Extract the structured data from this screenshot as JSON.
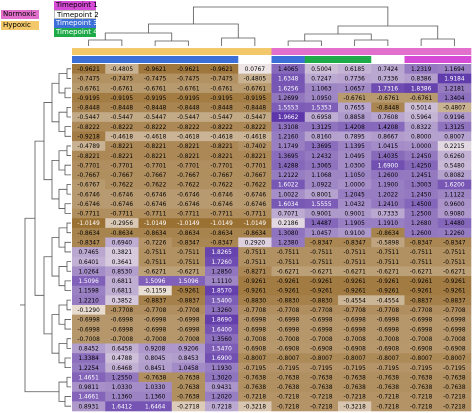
{
  "chart_data": {
    "type": "heatmap",
    "title": "",
    "xlabel": "",
    "ylabel": "",
    "legend": {
      "condition": [
        {
          "label": "Normoxic",
          "color": "#e16fcb"
        },
        {
          "label": "Hypoxic",
          "color": "#f2c86b"
        }
      ],
      "timepoint": [
        {
          "label": "Timepoint 1",
          "color": "#d64bd6"
        },
        {
          "label": "Timepoint 2",
          "color": "#ffffff"
        },
        {
          "label": "Timepoint 3",
          "color": "#3d6fd8"
        },
        {
          "label": "Timepoint 4",
          "color": "#1faa4a"
        }
      ]
    },
    "column_annotations": {
      "condition": [
        "Hypoxic",
        "Hypoxic",
        "Hypoxic",
        "Hypoxic",
        "Hypoxic",
        "Hypoxic",
        "Normoxic",
        "Normoxic",
        "Normoxic",
        "Normoxic",
        "Normoxic",
        "Normoxic"
      ],
      "timepoint": [
        "Timepoint 3",
        "Timepoint 3",
        "Timepoint 3",
        "Timepoint 3",
        "Timepoint 3",
        "Timepoint 2",
        "Timepoint 3",
        "Timepoint 4",
        "Timepoint 4",
        "Timepoint 2",
        "Timepoint 1",
        "Timepoint 1"
      ]
    },
    "color_scale": {
      "low": "#8a5a12",
      "mid": "#f3ece8",
      "high": "#5a33a8",
      "range": [
        -1.2,
        2.0
      ]
    },
    "values": [
      [
        "-0.9621",
        "-0.4805",
        "-0.9621",
        "-0.9621",
        "-0.9621",
        "0.0767",
        "1.4065",
        "0.5004",
        "0.6185",
        "0.7424",
        "1.2319",
        "1.1694"
      ],
      [
        "-0.7475",
        "-0.7475",
        "-0.7475",
        "-0.7475",
        "-0.7475",
        "-0.4805",
        "1.6348",
        "0.7247",
        "0.7736",
        "0.7336",
        "0.8386",
        "1.9184"
      ],
      [
        "-0.6761",
        "-0.6761",
        "-0.6761",
        "-0.6761",
        "-0.6761",
        "-0.6761",
        "1.6256",
        "1.1063",
        "1.0657",
        "1.7316",
        "1.8386",
        "1.2181"
      ],
      [
        "-0.9195",
        "-0.9195",
        "-0.9195",
        "-0.9195",
        "-0.9195",
        "-0.9195",
        "1.2699",
        "1.0950",
        "-0.6761",
        "-0.6761",
        "-0.6761",
        "1.3404"
      ],
      [
        "-0.8448",
        "-0.8448",
        "-0.8448",
        "-0.8448",
        "-0.8448",
        "-0.8448",
        "1.5553",
        "1.5353",
        "0.7655",
        "-0.8448",
        "0.5014",
        "-0.4807"
      ],
      [
        "-0.5447",
        "-0.5447",
        "-0.5447",
        "-0.5447",
        "-0.5447",
        "-0.5447",
        "1.9662",
        "0.6958",
        "0.8858",
        "0.7608",
        "0.5964",
        "0.9196"
      ],
      [
        "-0.8222",
        "-0.8222",
        "-0.8222",
        "-0.8222",
        "-0.8222",
        "-0.8222",
        "1.3108",
        "1.3125",
        "1.4208",
        "1.4208",
        "0.8322",
        "1.3125"
      ],
      [
        "-0.9218",
        "-0.4618",
        "-0.4618",
        "-0.4618",
        "-0.4618",
        "-0.4618",
        "1.2160",
        "0.8160",
        "0.7895",
        "0.8667",
        "0.8000",
        "0.8007"
      ],
      [
        "-0.4789",
        "-0.8221",
        "-0.8221",
        "-0.8221",
        "-0.8221",
        "-0.7402",
        "1.1749",
        "1.3695",
        "1.1395",
        "1.0415",
        "1.0000",
        "0.2215"
      ],
      [
        "-0.8221",
        "-0.8221",
        "-0.8221",
        "-0.8221",
        "-0.8221",
        "-0.8221",
        "1.3695",
        "1.2432",
        "1.0495",
        "1.4035",
        "1.2450",
        "0.6260"
      ],
      [
        "-0.7701",
        "-0.7701",
        "-0.7701",
        "-0.7701",
        "-0.7701",
        "-0.7701",
        "1.4288",
        "1.3065",
        "1.0300",
        "1.6900",
        "1.4250",
        "0.5480"
      ],
      [
        "-0.7667",
        "-0.7667",
        "-0.7667",
        "-0.7667",
        "-0.7667",
        "-0.7667",
        "1.2122",
        "1.1068",
        "1.1050",
        "1.2600",
        "1.2451",
        "0.8082"
      ],
      [
        "-0.6767",
        "-0.7622",
        "-0.7622",
        "-0.7622",
        "-0.7622",
        "-0.7622",
        "1.6022",
        "1.0922",
        "1.0000",
        "1.1900",
        "1.3003",
        "1.6200"
      ],
      [
        "-0.6746",
        "-0.6746",
        "-0.6746",
        "-0.6746",
        "-0.6746",
        "-0.6746",
        "1.0022",
        "0.8001",
        "1.2045",
        "1.2022",
        "1.2450",
        "1.1122"
      ],
      [
        "-0.6746",
        "-0.6746",
        "-0.6746",
        "-0.6746",
        "-0.6746",
        "-0.6746",
        "1.6034",
        "1.5555",
        "1.0432",
        "1.2410",
        "1.4500",
        "0.9600"
      ],
      [
        "-0.7711",
        "-0.7711",
        "-0.7711",
        "-0.7711",
        "-0.7711",
        "-0.7711",
        "0.7071",
        "0.9001",
        "0.9001",
        "0.7333",
        "1.2500",
        "0.9080"
      ],
      [
        "-1.0149",
        "-0.2956",
        "-1.0149",
        "-1.0149",
        "-1.0149",
        "-1.0149",
        "0.2186",
        "1.4487",
        "1.1905",
        "1.1910",
        "1.2680",
        "1.4480"
      ],
      [
        "-0.8634",
        "-0.8634",
        "-0.8634",
        "-0.8634",
        "-0.8634",
        "-0.8634",
        "1.3080",
        "1.0457",
        "0.9100",
        "-0.8634",
        "1.2600",
        "1.2260"
      ],
      [
        "-0.8347",
        "0.6940",
        "-0.7226",
        "-0.8347",
        "-0.8347",
        "0.2920",
        "1.2380",
        "-0.8347",
        "-0.8347",
        "-0.5898",
        "-0.8347",
        "-0.8347"
      ],
      [
        "0.7465",
        "0.3821",
        "-0.7511",
        "-0.7511",
        "1.8265",
        "-0.7511",
        "-0.7511",
        "-0.7511",
        "-0.7511",
        "-0.7511",
        "-0.7511",
        "-0.7511"
      ],
      [
        "0.6401",
        "0.3641",
        "-0.7511",
        "-0.7511",
        "1.7260",
        "-0.7511",
        "-0.7511",
        "-0.7511",
        "-0.7511",
        "-0.7511",
        "-0.7511",
        "-0.7511"
      ],
      [
        "1.0264",
        "0.8530",
        "-0.6271",
        "-0.6271",
        "1.2850",
        "-0.8271",
        "-0.6271",
        "-0.6271",
        "-0.6271",
        "-0.6271",
        "-0.6271",
        "-0.6271"
      ],
      [
        "1.5096",
        "0.6811",
        "1.5096",
        "1.5096",
        "1.1110",
        "-0.9261",
        "-0.9261",
        "-0.9261",
        "-0.9261",
        "-0.9261",
        "-0.9261",
        "-0.9261"
      ],
      [
        "1.1598",
        "0.6811",
        "-0.1159",
        "-0.9261",
        "1.8570",
        "-0.9261",
        "-0.9261",
        "-0.9261",
        "-0.9261",
        "-0.9261",
        "-0.9261",
        "-0.9261"
      ],
      [
        "1.2210",
        "0.3852",
        "-0.8837",
        "-0.8837",
        "1.5400",
        "-0.8830",
        "-0.8830",
        "-0.8830",
        "-0.4554",
        "-0.4554",
        "-0.8837",
        "-0.8837"
      ],
      [
        "-0.1290",
        "-0.7708",
        "-0.7708",
        "-0.7708",
        "1.3260",
        "-0.7708",
        "-0.7708",
        "-0.7708",
        "-0.7708",
        "-0.7708",
        "-0.7708",
        "-0.7708"
      ],
      [
        "-0.6998",
        "-0.6998",
        "-0.6998",
        "-0.6998",
        "1.8690",
        "-0.6998",
        "-0.6998",
        "-0.6998",
        "-0.6998",
        "-0.6998",
        "-0.6998",
        "-0.6998"
      ],
      [
        "-0.6998",
        "-0.6998",
        "-0.6998",
        "-0.6998",
        "1.6400",
        "-0.6998",
        "-0.6998",
        "-0.6998",
        "-0.6998",
        "-0.6998",
        "-0.6998",
        "-0.6998"
      ],
      [
        "-0.7008",
        "-0.7008",
        "-0.7008",
        "-0.7008",
        "1.3560",
        "-0.7008",
        "-0.7008",
        "-0.7008",
        "-0.7008",
        "-0.7008",
        "-0.7008",
        "-0.7008"
      ],
      [
        "0.8452",
        "0.6458",
        "0.9208",
        "0.9206",
        "1.5470",
        "-0.6908",
        "-0.6908",
        "-0.6908",
        "-0.6908",
        "-0.6908",
        "-0.6908",
        "-0.6908"
      ],
      [
        "1.3384",
        "0.4788",
        "0.8045",
        "0.8453",
        "1.6900",
        "-0.8007",
        "-0.8007",
        "-0.8007",
        "-0.8007",
        "-0.8007",
        "-0.8007",
        "-0.8007"
      ],
      [
        "1.2254",
        "0.6468",
        "0.8451",
        "1.0458",
        "1.1930",
        "-0.7195",
        "-0.7195",
        "-0.7195",
        "-0.7195",
        "-0.7195",
        "-0.7195",
        "-0.7195"
      ],
      [
        "1.4651",
        "1.2550",
        "-0.7638",
        "-0.7638",
        "1.3020",
        "-0.7638",
        "-0.7638",
        "-0.7638",
        "-0.7638",
        "-0.7638",
        "-0.7638",
        "-0.7638"
      ],
      [
        "0.9811",
        "1.0330",
        "1.0330",
        "-0.7638",
        "0.9431",
        "-0.7638",
        "-0.7638",
        "-0.7638",
        "-0.7638",
        "-0.7638",
        "-0.7638",
        "-0.7638"
      ],
      [
        "1.4661",
        "1.1360",
        "1.1360",
        "-0.7638",
        "1.2020",
        "-0.7218",
        "-0.7218",
        "-0.7218",
        "-0.7218",
        "-0.7218",
        "-0.7218",
        "-0.7218"
      ],
      [
        "0.8931",
        "1.6412",
        "1.6464",
        "-0.2718",
        "0.7218",
        "-0.3218",
        "-0.7218",
        "-0.7218",
        "-0.3218",
        "-0.7218",
        "-0.7218",
        "-0.7218"
      ]
    ]
  }
}
